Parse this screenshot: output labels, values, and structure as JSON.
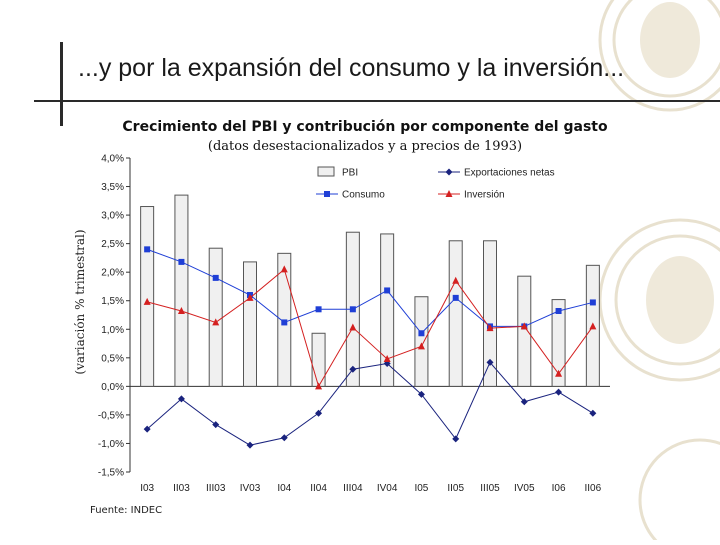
{
  "slide": {
    "title": "...y por la expansión del consumo y la inversión..."
  },
  "colors": {
    "bar_fill": "#f0f0f0",
    "bar_stroke": "#555555",
    "consumo": "#1f3fd6",
    "exportaciones": "#1a237e",
    "inversion": "#d42020"
  },
  "chart_data": {
    "type": "bar+line",
    "title": "Crecimiento del PBI y contribución por componente del gasto",
    "subtitle": "(datos desestacionalizados y a precios de 1993)",
    "ylabel": "(variación % trimestral)",
    "ylim": [
      -1.5,
      4.0
    ],
    "yticks": [
      "4,0%",
      "3,5%",
      "3,0%",
      "2,5%",
      "2,0%",
      "1,5%",
      "1,0%",
      "0,5%",
      "0,0%",
      "-0,5%",
      "-1,0%",
      "-1,5%"
    ],
    "ytick_values": [
      4.0,
      3.5,
      3.0,
      2.5,
      2.0,
      1.5,
      1.0,
      0.5,
      0.0,
      -0.5,
      -1.0,
      -1.5
    ],
    "categories": [
      "I03",
      "II03",
      "III03",
      "IV03",
      "I04",
      "II04",
      "III04",
      "IV04",
      "I05",
      "II05",
      "III05",
      "IV05",
      "I06",
      "II06"
    ],
    "series": [
      {
        "name": "PBI",
        "kind": "bar",
        "values": [
          3.15,
          3.35,
          2.42,
          2.18,
          2.33,
          0.93,
          2.7,
          2.67,
          1.57,
          2.55,
          2.55,
          1.93,
          1.52,
          2.12
        ]
      },
      {
        "name": "Exportaciones netas",
        "kind": "line",
        "marker": "diamond",
        "values": [
          -0.75,
          -0.22,
          -0.67,
          -1.03,
          -0.9,
          -0.47,
          0.3,
          0.4,
          -0.14,
          -0.92,
          0.42,
          -0.27,
          -0.1,
          -0.47
        ]
      },
      {
        "name": "Consumo",
        "kind": "line",
        "marker": "square",
        "values": [
          2.4,
          2.18,
          1.9,
          1.6,
          1.12,
          1.35,
          1.35,
          1.68,
          0.93,
          1.55,
          1.05,
          1.05,
          1.32,
          1.47
        ]
      },
      {
        "name": "Inversión",
        "kind": "line",
        "marker": "triangle",
        "values": [
          1.48,
          1.32,
          1.12,
          1.55,
          2.05,
          0.0,
          1.03,
          0.48,
          0.7,
          1.85,
          1.02,
          1.05,
          0.22,
          1.05
        ]
      }
    ],
    "legend": {
      "position": "top-right",
      "items": [
        "PBI",
        "Exportaciones netas",
        "Consumo",
        "Inversión"
      ]
    },
    "source": "Fuente: INDEC"
  }
}
